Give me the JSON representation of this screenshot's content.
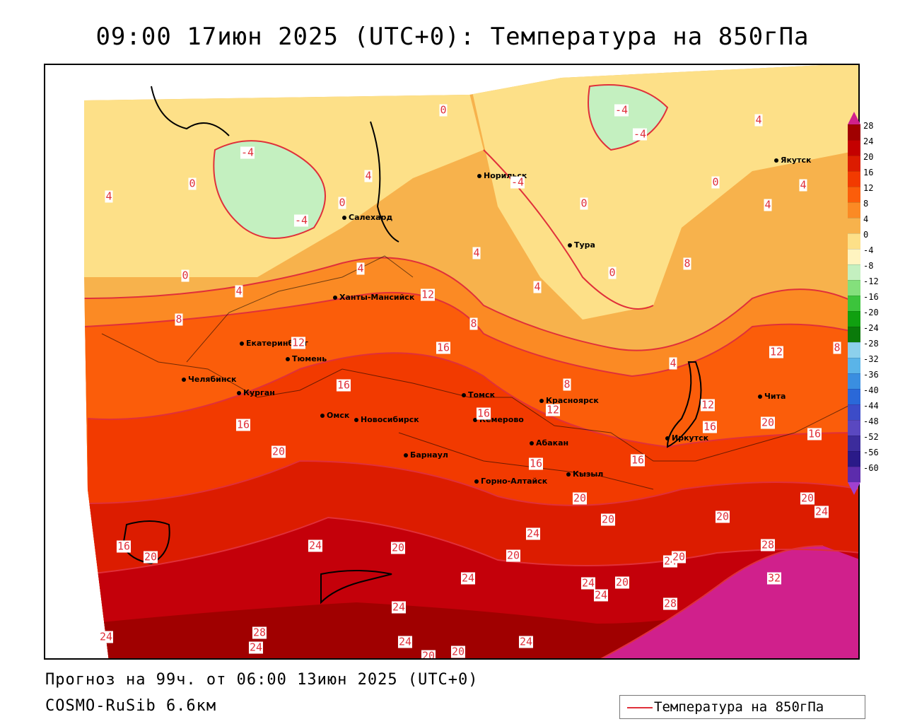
{
  "header": {
    "title": "09:00 17июн 2025 (UTC+0): Температура на 850гПа"
  },
  "footer": {
    "forecast": "Прогноз на 99ч. от 06:00 13июн 2025 (UTC+0)",
    "model": "COSMO-RuSib 6.6км"
  },
  "legend": {
    "label": "Температура на 850гПа",
    "color": "#e0303a"
  },
  "colorbar": {
    "labels": [
      "28",
      "24",
      "20",
      "16",
      "12",
      "8",
      "4",
      "0",
      "-4",
      "-8",
      "-12",
      "-16",
      "-20",
      "-24",
      "-28",
      "-32",
      "-36",
      "-40",
      "-44",
      "-48",
      "-52",
      "-56",
      "-60"
    ],
    "colors": [
      "#a00000",
      "#c40000",
      "#dc1c00",
      "#f23a00",
      "#fb5d0a",
      "#fb8a24",
      "#f7b24c",
      "#fde088",
      "#fff4c0",
      "#c4f0c0",
      "#84e07c",
      "#3cc43c",
      "#10a010",
      "#0a7a0a",
      "#8cd0ec",
      "#5ab4e8",
      "#3a8ee0",
      "#2a68d8",
      "#3c4cc8",
      "#5a48c0",
      "#3c2c9c",
      "#2a1a88",
      "#5c2cac"
    ],
    "top_color": "#d0208c",
    "bottom_color": "#a040d0"
  },
  "cities": [
    {
      "name": "Норильск"
    },
    {
      "name": "Якутск"
    },
    {
      "name": "Салехард"
    },
    {
      "name": "Тура"
    },
    {
      "name": "Ханты-Мансийск"
    },
    {
      "name": "Екатеринбург"
    },
    {
      "name": "Тюмень"
    },
    {
      "name": "Челябинск"
    },
    {
      "name": "Курган"
    },
    {
      "name": "Омск"
    },
    {
      "name": "Томск"
    },
    {
      "name": "Красноярск"
    },
    {
      "name": "Новосибирск"
    },
    {
      "name": "Кемерово"
    },
    {
      "name": "Абакан"
    },
    {
      "name": "Барнаул"
    },
    {
      "name": "Горно-Алтайск"
    },
    {
      "name": "Кызыл"
    },
    {
      "name": "Иркутск"
    },
    {
      "name": "Чита"
    }
  ],
  "contour_labels": [
    "-4",
    "0",
    "-4",
    "-4",
    "-4",
    "4",
    "0",
    "4",
    "0",
    "-4",
    "4",
    "0",
    "4",
    "0",
    "4",
    "4",
    "4",
    "4",
    "0",
    "0",
    "4",
    "8",
    "12",
    "8",
    "4",
    "8",
    "16",
    "8",
    "12",
    "12",
    "12",
    "8",
    "16",
    "16",
    "16",
    "12",
    "16",
    "20",
    "16",
    "16",
    "20",
    "16",
    "20",
    "20",
    "20",
    "20",
    "24",
    "24",
    "16",
    "20",
    "24",
    "20",
    "24",
    "20",
    "28",
    "24",
    "32",
    "24",
    "20",
    "24",
    "24",
    "24",
    "24",
    "28",
    "28",
    "24",
    "20",
    "20",
    "24",
    "20"
  ]
}
